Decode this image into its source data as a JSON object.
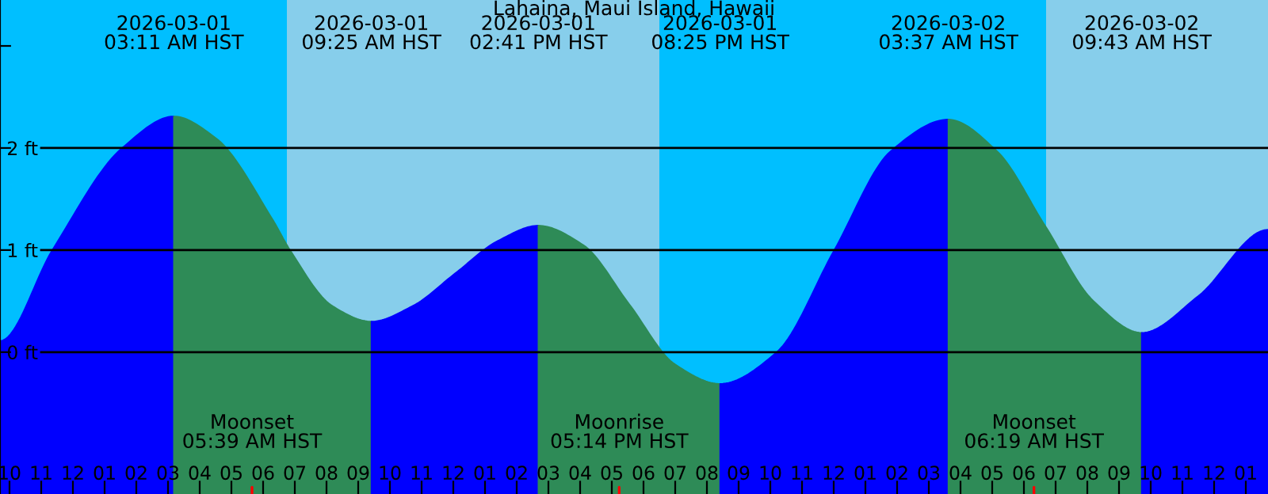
{
  "chart_data": {
    "type": "area",
    "title": "Lahaina, Maui Island, Hawaii",
    "series": [
      {
        "color": "#0000ff",
        "x": [
          "2026-02-28T21:42",
          "2026-02-28T23:21",
          "2026-03-01T01:33",
          "2026-03-01T03:11"
        ],
        "values": [
          0.11,
          1.0,
          2.0,
          2.31
        ]
      },
      {
        "color": "#2e8b57",
        "x": [
          "2026-03-01T03:11",
          "2026-03-01T04:30",
          "2026-03-01T06:18",
          "2026-03-01T06:51",
          "2026-03-01T08:12",
          "2026-03-01T09:25"
        ],
        "values": [
          2.31,
          2.1,
          1.3,
          1.0,
          0.45,
          0.3
        ]
      },
      {
        "color": "#0000ff",
        "x": [
          "2026-03-01T09:25",
          "2026-03-01T10:42",
          "2026-03-01T12:03",
          "2026-03-01T13:24",
          "2026-03-01T14:41"
        ],
        "values": [
          0.3,
          0.45,
          0.77,
          1.09,
          1.24
        ]
      },
      {
        "color": "#2e8b57",
        "x": [
          "2026-03-01T14:41",
          "2026-03-01T16:06",
          "2026-03-01T17:33",
          "2026-03-01T19:00",
          "2026-03-01T20:25"
        ],
        "values": [
          1.24,
          1.05,
          0.47,
          -0.12,
          -0.31
        ]
      },
      {
        "color": "#0000ff",
        "x": [
          "2026-03-01T20:25",
          "2026-03-01T22:12",
          "2026-03-02T00:00",
          "2026-03-02T01:48",
          "2026-03-02T03:37"
        ],
        "values": [
          -0.31,
          0.0,
          0.99,
          1.97,
          2.28
        ]
      },
      {
        "color": "#2e8b57",
        "x": [
          "2026-03-02T03:37",
          "2026-03-02T05:09",
          "2026-03-02T06:40",
          "2026-03-02T08:12",
          "2026-03-02T09:43"
        ],
        "values": [
          2.28,
          1.97,
          1.24,
          0.5,
          0.19
        ]
      },
      {
        "color": "#0000ff",
        "x": [
          "2026-03-02T09:43",
          "2026-03-02T11:30",
          "2026-03-02T13:42"
        ],
        "values": [
          0.19,
          0.55,
          1.2
        ]
      }
    ],
    "xlim": [
      "2026-02-28T21:42",
      "2026-03-02T13:42"
    ],
    "xticks": [
      {
        "value": "2026-02-28T22:00",
        "label": "10"
      },
      {
        "value": "2026-02-28T23:00",
        "label": "11"
      },
      {
        "value": "2026-03-01T00:00",
        "label": "12"
      },
      {
        "value": "2026-03-01T01:00",
        "label": "01"
      },
      {
        "value": "2026-03-01T02:00",
        "label": "02"
      },
      {
        "value": "2026-03-01T03:00",
        "label": "03"
      },
      {
        "value": "2026-03-01T04:00",
        "label": "04"
      },
      {
        "value": "2026-03-01T05:00",
        "label": "05"
      },
      {
        "value": "2026-03-01T06:00",
        "label": "06"
      },
      {
        "value": "2026-03-01T07:00",
        "label": "07"
      },
      {
        "value": "2026-03-01T08:00",
        "label": "08"
      },
      {
        "value": "2026-03-01T09:00",
        "label": "09"
      },
      {
        "value": "2026-03-01T10:00",
        "label": "10"
      },
      {
        "value": "2026-03-01T11:00",
        "label": "11"
      },
      {
        "value": "2026-03-01T12:00",
        "label": "12"
      },
      {
        "value": "2026-03-01T13:00",
        "label": "01"
      },
      {
        "value": "2026-03-01T14:00",
        "label": "02"
      },
      {
        "value": "2026-03-01T15:00",
        "label": "03"
      },
      {
        "value": "2026-03-01T16:00",
        "label": "04"
      },
      {
        "value": "2026-03-01T17:00",
        "label": "05"
      },
      {
        "value": "2026-03-01T18:00",
        "label": "06"
      },
      {
        "value": "2026-03-01T19:00",
        "label": "07"
      },
      {
        "value": "2026-03-01T20:00",
        "label": "08"
      },
      {
        "value": "2026-03-01T21:00",
        "label": "09"
      },
      {
        "value": "2026-03-01T22:00",
        "label": "10"
      },
      {
        "value": "2026-03-01T23:00",
        "label": "11"
      },
      {
        "value": "2026-03-02T00:00",
        "label": "12"
      },
      {
        "value": "2026-03-02T01:00",
        "label": "01"
      },
      {
        "value": "2026-03-02T02:00",
        "label": "02"
      },
      {
        "value": "2026-03-02T03:00",
        "label": "03"
      },
      {
        "value": "2026-03-02T04:00",
        "label": "04"
      },
      {
        "value": "2026-03-02T05:00",
        "label": "05"
      },
      {
        "value": "2026-03-02T06:00",
        "label": "06"
      },
      {
        "value": "2026-03-02T07:00",
        "label": "07"
      },
      {
        "value": "2026-03-02T08:00",
        "label": "08"
      },
      {
        "value": "2026-03-02T09:00",
        "label": "09"
      },
      {
        "value": "2026-03-02T10:00",
        "label": "10"
      },
      {
        "value": "2026-03-02T11:00",
        "label": "11"
      },
      {
        "value": "2026-03-02T12:00",
        "label": "12"
      },
      {
        "value": "2026-03-02T13:00",
        "label": "01"
      }
    ],
    "ylim": [
      -1.39,
      3.45
    ],
    "yticks": [
      {
        "value": 0,
        "label": "0 ft"
      },
      {
        "value": 1,
        "label": "1 ft"
      },
      {
        "value": 2,
        "label": "2 ft"
      },
      {
        "value": 3,
        "label": null
      }
    ],
    "grid": "y",
    "bands": [
      {
        "axis": "x",
        "from": "2026-02-28T21:42",
        "to": "2026-03-01T06:45",
        "color": "#00bfff"
      },
      {
        "axis": "x",
        "from": "2026-03-01T06:45",
        "to": "2026-03-01T18:30",
        "color": "#87ceeb"
      },
      {
        "axis": "x",
        "from": "2026-03-01T18:30",
        "to": "2026-03-02T06:42",
        "color": "#00bfff"
      },
      {
        "axis": "x",
        "from": "2026-03-02T06:42",
        "to": "2026-03-02T13:42",
        "color": "#87ceeb"
      }
    ],
    "annotations": [
      "2026-03-01\n03:11 AM HST",
      "2026-03-01\n09:25 AM HST",
      "2026-03-01\n02:41 PM HST",
      "2026-03-01\n08:25 PM HST",
      "2026-03-02\n03:37 AM HST",
      "2026-03-02\n09:43 AM HST",
      {
        "text": "Moonset\n05:39 AM HST",
        "x": "2026-03-01T05:39",
        "y": -1.39
      },
      {
        "text": "Moonrise\n05:14 PM HST",
        "x": "2026-03-01T17:14",
        "y": -1.39
      },
      {
        "text": "Moonset\n06:19 AM HST",
        "x": "2026-03-02T06:19",
        "y": -1.39
      }
    ]
  }
}
